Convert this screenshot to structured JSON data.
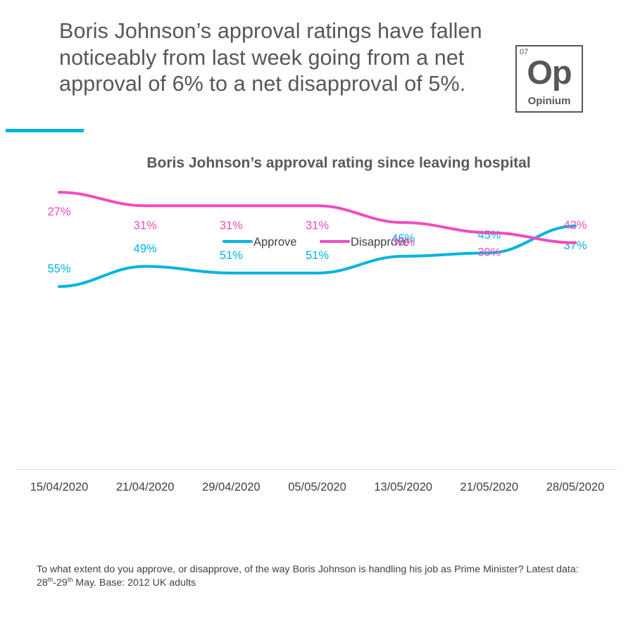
{
  "headline": "Boris Johnson’s approval ratings have fallen noticeably from last week going from a net approval of 6% to a net disapproval of 5%.",
  "logo": {
    "number": "07",
    "symbol": "Op",
    "name": "Opinium"
  },
  "footnote": {
    "part1": "To what extent do you approve, or disapprove, of the way Boris Johnson is handling his job as Prime Minister? Latest data: 28",
    "sup1": "th",
    "part2": "-29",
    "sup2": "th",
    "part3": " May. Base: 2012 UK adults"
  },
  "colors": {
    "approve": "#00b3e3",
    "disapprove": "#f04cbe",
    "text": "#575757",
    "axis": "#d9d9d9"
  },
  "chart_data": {
    "type": "line",
    "title": "Boris Johnson’s approval rating since leaving hospital",
    "categories": [
      "15/04/2020",
      "21/04/2020",
      "29/04/2020",
      "05/05/2020",
      "13/05/2020",
      "21/05/2020",
      "28/05/2020"
    ],
    "series": [
      {
        "name": "Approve",
        "values": [
          55,
          49,
          51,
          51,
          46,
          45,
          37
        ],
        "color": "#00b3e3",
        "label_position": [
          "above",
          "above",
          "above",
          "above",
          "above",
          "above",
          "below"
        ]
      },
      {
        "name": "Disapprove",
        "values": [
          27,
          31,
          31,
          31,
          36,
          39,
          42
        ],
        "color": "#f04cbe",
        "label_position": [
          "below",
          "below",
          "below",
          "below",
          "below",
          "below",
          "above"
        ]
      }
    ],
    "value_suffix": "%",
    "ylim": [
      0,
      60
    ],
    "grid": false,
    "legend": "top-center",
    "xlabel": "",
    "ylabel": ""
  }
}
